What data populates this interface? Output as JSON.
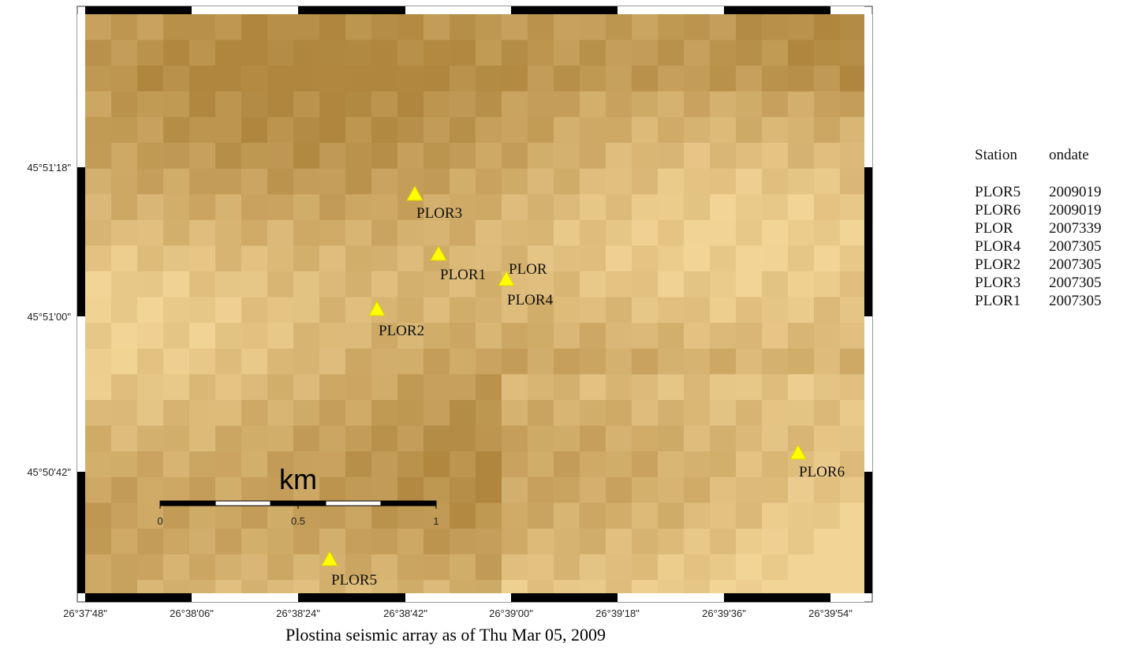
{
  "map": {
    "x_labels": [
      "26°37'48\"",
      "26°38'06\"",
      "26°38'24\"",
      "26°38'42\"",
      "26°39'00\"",
      "26°39'18\"",
      "26°39'36\"",
      "26°39'54\""
    ],
    "y_labels": [
      "45°51'18\"",
      "45°51'00\"",
      "45°50'42\""
    ],
    "stations": [
      "PLOR3",
      "PLOR1",
      "PLOR",
      "PLOR4",
      "PLOR2",
      "PLOR6",
      "PLOR5"
    ],
    "scale": {
      "unit": "km",
      "labels": [
        "0",
        "0.5",
        "1"
      ]
    }
  },
  "caption": "Plostina seismic array  as of  Thu Mar 05, 2009",
  "table": {
    "header": [
      "Station",
      "ondate"
    ],
    "rows": [
      [
        "PLOR5",
        "2009019"
      ],
      [
        "PLOR6",
        "2009019"
      ],
      [
        "PLOR",
        "2007339"
      ],
      [
        "PLOR4",
        "2007305"
      ],
      [
        "PLOR2",
        "2007305"
      ],
      [
        "PLOR3",
        "2007305"
      ],
      [
        "PLOR1",
        "2007305"
      ]
    ]
  }
}
